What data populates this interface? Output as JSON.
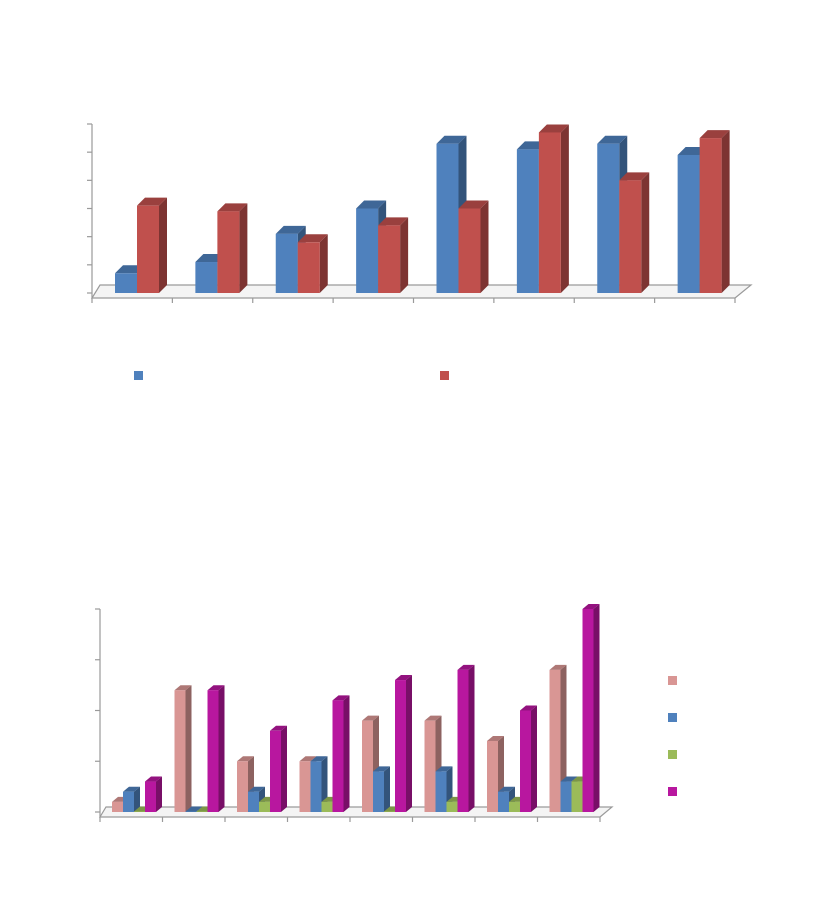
{
  "chart_data": [
    {
      "type": "bar",
      "three_d": true,
      "legend": "bottom",
      "categories": [
        null,
        null,
        null,
        null,
        null,
        null,
        null,
        null
      ],
      "series": [
        {
          "color": "#4f81bd",
          "values": [
            0.7,
            1.1,
            2.1,
            3.0,
            5.3,
            5.1,
            5.3,
            4.9
          ]
        },
        {
          "color": "#c0504d",
          "values": [
            3.1,
            2.9,
            1.8,
            2.4,
            3.0,
            5.7,
            4.0,
            5.5
          ]
        }
      ],
      "ylim": [
        0,
        6
      ],
      "yticks": [
        0,
        1,
        2,
        3,
        4,
        5,
        6
      ]
    },
    {
      "type": "bar",
      "three_d": true,
      "legend": "right",
      "categories": [
        null,
        null,
        null,
        null,
        null,
        null,
        null,
        null
      ],
      "series": [
        {
          "color": "#d99694",
          "values": [
            0.2,
            2.4,
            1.0,
            1.0,
            1.8,
            1.8,
            1.4,
            2.8
          ]
        },
        {
          "color": "#4f81bd",
          "values": [
            0.4,
            0,
            0.4,
            1.0,
            0.8,
            0.8,
            0.4,
            0.6
          ]
        },
        {
          "color": "#9bbb59",
          "values": [
            0,
            0,
            0.2,
            0.2,
            0,
            0.2,
            0.2,
            0.6
          ]
        },
        {
          "color": "#b8179f",
          "values": [
            0.6,
            2.4,
            1.6,
            2.2,
            2.6,
            2.8,
            2.0,
            4.0
          ]
        }
      ],
      "ylim": [
        0,
        4
      ],
      "yticks": [
        0,
        1,
        2,
        3,
        4
      ]
    }
  ]
}
